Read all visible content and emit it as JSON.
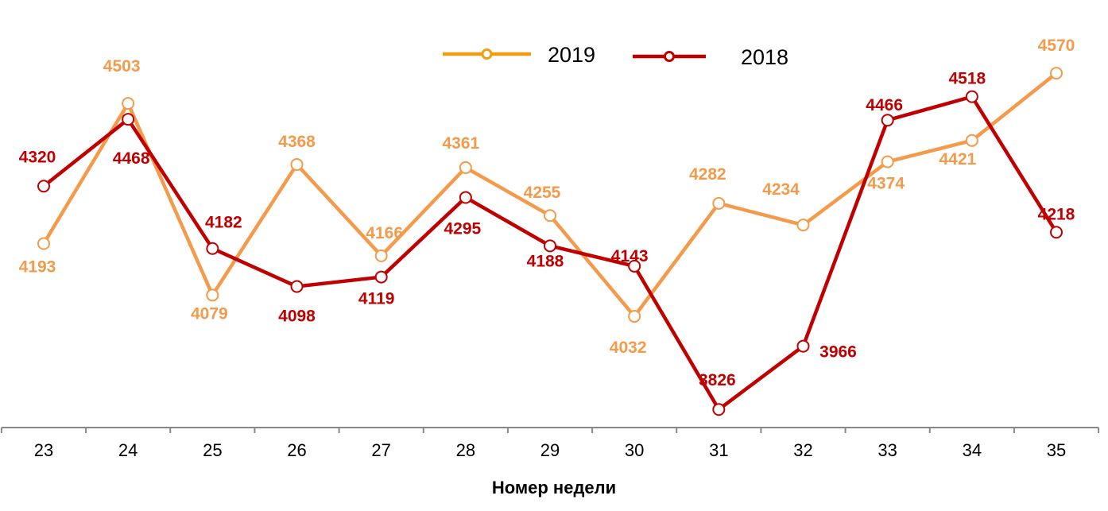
{
  "chart_data": {
    "type": "line",
    "title": "",
    "xlabel": "Номер недели",
    "ylabel": "",
    "categories": [
      "23",
      "24",
      "25",
      "26",
      "27",
      "28",
      "29",
      "30",
      "31",
      "32",
      "33",
      "34",
      "35"
    ],
    "series": [
      {
        "name": "2019",
        "color": "#F39A4B",
        "legend_color": "#F39C12",
        "values": [
          4193,
          4503,
          4079,
          4368,
          4166,
          4361,
          4255,
          4032,
          4282,
          4234,
          4374,
          4421,
          4570
        ]
      },
      {
        "name": "2018",
        "color": "#C00000",
        "values": [
          4320,
          4468,
          4182,
          4098,
          4119,
          4295,
          4188,
          4143,
          3826,
          3966,
          4466,
          4518,
          4218
        ]
      }
    ],
    "ylim": [
      3800,
      4600
    ],
    "grid": false,
    "y_axis_visible": false,
    "legend_position": "top-center",
    "markers": "hollow-circle",
    "data_labels": true
  }
}
